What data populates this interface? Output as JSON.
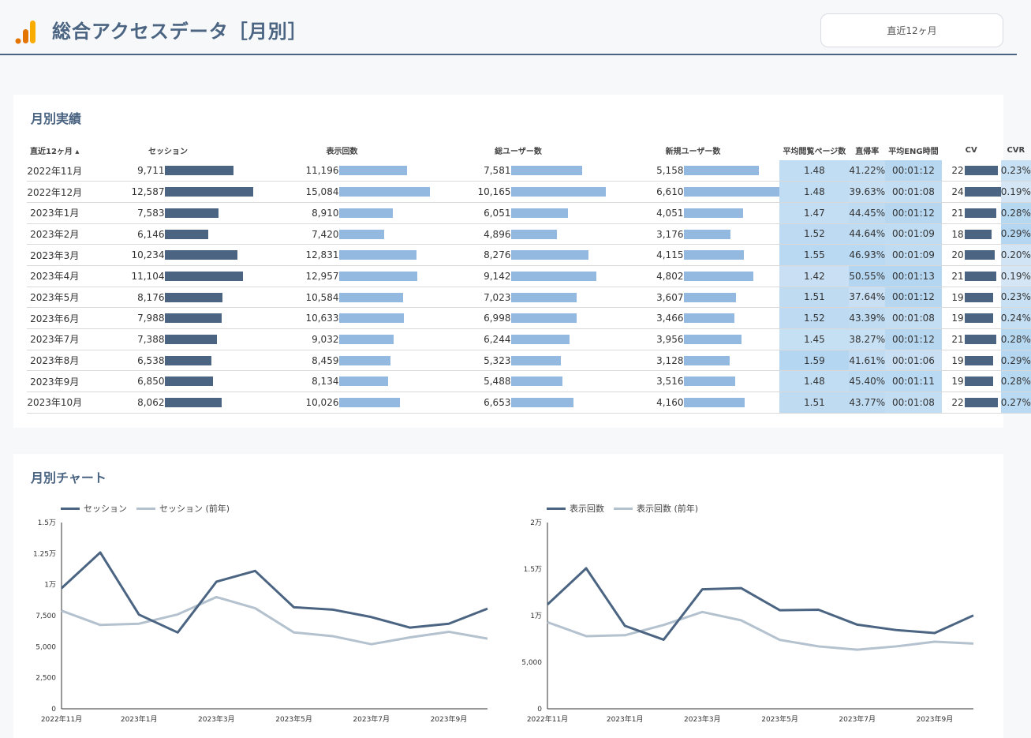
{
  "header": {
    "title": "総合アクセスデータ［月別］",
    "period": "直近12ヶ月"
  },
  "colors": {
    "primary": "#4a6482",
    "light_bar": "#93b9e1",
    "prev_year": "#b4c1ce",
    "heat_low": "#d4e6f5",
    "heat_high": "#b4d6f1"
  },
  "table": {
    "title": "月別実績",
    "headers": [
      "直近12ヶ月 ▴",
      "セッション",
      "表示回数",
      "総ユーザー数",
      "新規ユーザー数",
      "平均閲覧ページ数",
      "直帰率",
      "平均ENG時間",
      "CV",
      "CVR"
    ],
    "rows": [
      [
        "2022年11月",
        "9,711",
        "11,196",
        "7,581",
        "5,158",
        "1.48",
        "41.22%",
        "00:01:12",
        "22",
        "0.23%"
      ],
      [
        "2022年12月",
        "12,587",
        "15,084",
        "10,165",
        "6,610",
        "1.48",
        "39.63%",
        "00:01:08",
        "24",
        "0.19%"
      ],
      [
        "2023年1月",
        "7,583",
        "8,910",
        "6,051",
        "4,051",
        "1.47",
        "44.45%",
        "00:01:12",
        "21",
        "0.28%"
      ],
      [
        "2023年2月",
        "6,146",
        "7,420",
        "4,896",
        "3,176",
        "1.52",
        "44.64%",
        "00:01:09",
        "18",
        "0.29%"
      ],
      [
        "2023年3月",
        "10,234",
        "12,831",
        "8,276",
        "4,115",
        "1.55",
        "46.93%",
        "00:01:09",
        "20",
        "0.20%"
      ],
      [
        "2023年4月",
        "11,104",
        "12,957",
        "9,142",
        "4,802",
        "1.42",
        "50.55%",
        "00:01:13",
        "21",
        "0.19%"
      ],
      [
        "2023年5月",
        "8,176",
        "10,584",
        "7,023",
        "3,607",
        "1.51",
        "37.64%",
        "00:01:12",
        "19",
        "0.23%"
      ],
      [
        "2023年6月",
        "7,988",
        "10,633",
        "6,998",
        "3,466",
        "1.52",
        "43.39%",
        "00:01:08",
        "19",
        "0.24%"
      ],
      [
        "2023年7月",
        "7,388",
        "9,032",
        "6,244",
        "3,956",
        "1.45",
        "38.27%",
        "00:01:12",
        "21",
        "0.28%"
      ],
      [
        "2023年8月",
        "6,538",
        "8,459",
        "5,323",
        "3,128",
        "1.59",
        "41.61%",
        "00:01:06",
        "19",
        "0.29%"
      ],
      [
        "2023年9月",
        "6,850",
        "8,134",
        "5,488",
        "3,516",
        "1.48",
        "45.40%",
        "00:01:11",
        "19",
        "0.28%"
      ],
      [
        "2023年10月",
        "8,062",
        "10,026",
        "6,653",
        "4,160",
        "1.51",
        "43.77%",
        "00:01:08",
        "22",
        "0.27%"
      ]
    ]
  },
  "charts_section": {
    "title": "月別チャート"
  },
  "chart_data": [
    {
      "type": "line",
      "categories": [
        "2022年11月",
        "2022年12月",
        "2023年1月",
        "2023年2月",
        "2023年3月",
        "2023年4月",
        "2023年5月",
        "2023年6月",
        "2023年7月",
        "2023年8月",
        "2023年9月",
        "2023年10月"
      ],
      "x_tick_labels": [
        "2022年11月",
        "2023年1月",
        "2023年3月",
        "2023年5月",
        "2023年7月",
        "2023年9月"
      ],
      "series": [
        {
          "name": "セッション",
          "values": [
            9711,
            12587,
            7583,
            6146,
            10234,
            11104,
            8176,
            7988,
            7388,
            6538,
            6850,
            8062
          ]
        },
        {
          "name": "セッション (前年)",
          "values": [
            7900,
            6750,
            6850,
            7600,
            9000,
            8100,
            6150,
            5850,
            5200,
            5750,
            6200,
            5650
          ]
        }
      ],
      "ylim": [
        0,
        15000
      ],
      "y_ticks": [
        0,
        2500,
        5000,
        7500,
        10000,
        12500,
        15000
      ],
      "y_tick_labels": [
        "0",
        "2,500",
        "5,000",
        "7,500",
        "1万",
        "1.25万",
        "1.5万"
      ],
      "legend": "top-left",
      "grid": false
    },
    {
      "type": "line",
      "categories": [
        "2022年11月",
        "2022年12月",
        "2023年1月",
        "2023年2月",
        "2023年3月",
        "2023年4月",
        "2023年5月",
        "2023年6月",
        "2023年7月",
        "2023年8月",
        "2023年9月",
        "2023年10月"
      ],
      "x_tick_labels": [
        "2022年11月",
        "2023年1月",
        "2023年3月",
        "2023年5月",
        "2023年7月",
        "2023年9月"
      ],
      "series": [
        {
          "name": "表示回数",
          "values": [
            11196,
            15084,
            8910,
            7420,
            12831,
            12957,
            10584,
            10633,
            9032,
            8459,
            8134,
            10026
          ]
        },
        {
          "name": "表示回数 (前年)",
          "values": [
            9300,
            7800,
            7900,
            9000,
            10400,
            9500,
            7400,
            6700,
            6350,
            6700,
            7200,
            7000
          ]
        }
      ],
      "ylim": [
        0,
        20000
      ],
      "y_ticks": [
        0,
        5000,
        10000,
        15000,
        20000
      ],
      "y_tick_labels": [
        "0",
        "5,000",
        "1万",
        "1.5万",
        "2万"
      ],
      "legend": "top-left",
      "grid": false
    }
  ]
}
